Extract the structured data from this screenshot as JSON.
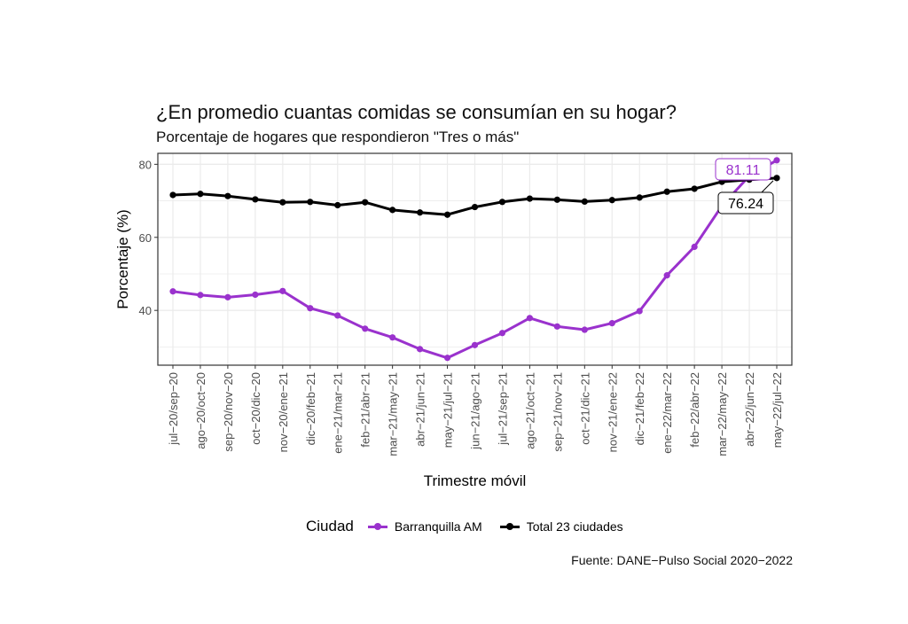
{
  "title": "¿En promedio cuantas comidas se consumían en su hogar?",
  "subtitle": "Porcentaje de hogares que respondieron \"Tres o más\"",
  "caption": "Fuente: DANE−Pulso Social 2020−2022",
  "legend": {
    "title": "Ciudad"
  },
  "colors": {
    "barranquilla": "#9a32cd",
    "total": "#000000",
    "grid": "#ebebeb",
    "panel_border": "#333333"
  },
  "chart_data": {
    "type": "line",
    "xlabel": "Trimestre móvil",
    "ylabel": "Porcentaje (%)",
    "ylim": [
      25,
      83
    ],
    "yticks": [
      40,
      60,
      80
    ],
    "grid": true,
    "legend_position": "bottom",
    "categories": [
      "jul−20/sep−20",
      "ago−20/oct−20",
      "sep−20/nov−20",
      "oct−20/dic−20",
      "nov−20/ene−21",
      "dic−20/feb−21",
      "ene−21/mar−21",
      "feb−21/abr−21",
      "mar−21/may−21",
      "abr−21/jun−21",
      "may−21/jul−21",
      "jun−21/ago−21",
      "jul−21/sep−21",
      "ago−21/oct−21",
      "sep−21/nov−21",
      "oct−21/dic−21",
      "nov−21/ene−22",
      "dic−21/feb−22",
      "ene−22/mar−22",
      "feb−22/abr−22",
      "mar−22/may−22",
      "abr−22/jun−22",
      "may−22/jul−22"
    ],
    "series": [
      {
        "name": "Barranquilla AM",
        "color": "#9a32cd",
        "values": [
          45.2,
          44.2,
          43.6,
          44.3,
          45.3,
          40.6,
          38.6,
          35.0,
          32.6,
          29.4,
          27.0,
          30.5,
          33.8,
          37.9,
          35.6,
          34.7,
          36.5,
          39.8,
          49.6,
          57.4,
          68.6,
          76.8,
          81.11
        ],
        "end_label": "81.11"
      },
      {
        "name": "Total 23 ciudades",
        "color": "#000000",
        "values": [
          71.6,
          71.9,
          71.3,
          70.4,
          69.6,
          69.7,
          68.8,
          69.6,
          67.5,
          66.8,
          66.2,
          68.3,
          69.7,
          70.6,
          70.3,
          69.8,
          70.2,
          70.9,
          72.5,
          73.3,
          75.2,
          75.8,
          76.24
        ],
        "end_label": "76.24"
      }
    ]
  }
}
